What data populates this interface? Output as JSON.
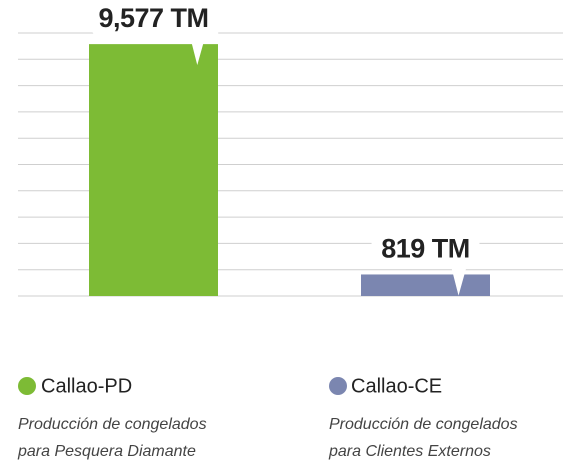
{
  "chart_data": {
    "type": "bar",
    "categories": [
      "Callao-PD",
      "Callao-CE"
    ],
    "values": [
      9577,
      819
    ],
    "value_labels": [
      "9,577 TM",
      "819 TM"
    ],
    "colors": [
      "#7dbb35",
      "#7b86b0"
    ],
    "descriptions": [
      [
        "Producción de congelados",
        "para Pesquera Diamante"
      ],
      [
        "Producción de congelados",
        "para Clientes Externos"
      ]
    ],
    "ylim": [
      0,
      10000
    ],
    "yticks": [
      0,
      1000,
      2000,
      3000,
      4000,
      5000,
      6000,
      7000,
      8000,
      9000,
      10000
    ],
    "grid": true
  }
}
